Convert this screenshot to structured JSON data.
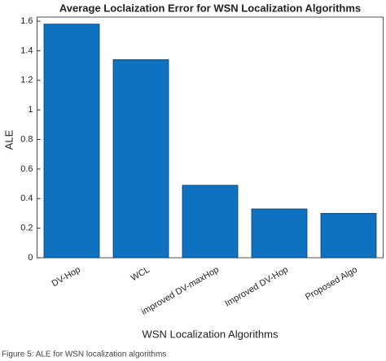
{
  "chart_data": {
    "type": "bar",
    "title": "Average Loclaization Error for WSN Localization Algorithms",
    "x_label": "WSN Localization Algorithms",
    "y_label": "ALE",
    "caption": "Figure 5: ALE for WSN localization algorithms",
    "categories": [
      "DV-Hop",
      "WCL",
      "improved DV-maxHop",
      "Improved DV-Hop",
      "Proposed Algo"
    ],
    "values": [
      1.58,
      1.34,
      0.49,
      0.33,
      0.3
    ],
    "color": "#0f72c0",
    "ylim": [
      0,
      1.6
    ],
    "yticks": [
      0,
      0.2,
      0.4,
      0.6,
      0.8,
      1,
      1.2,
      1.4,
      1.6
    ],
    "grid": false
  }
}
